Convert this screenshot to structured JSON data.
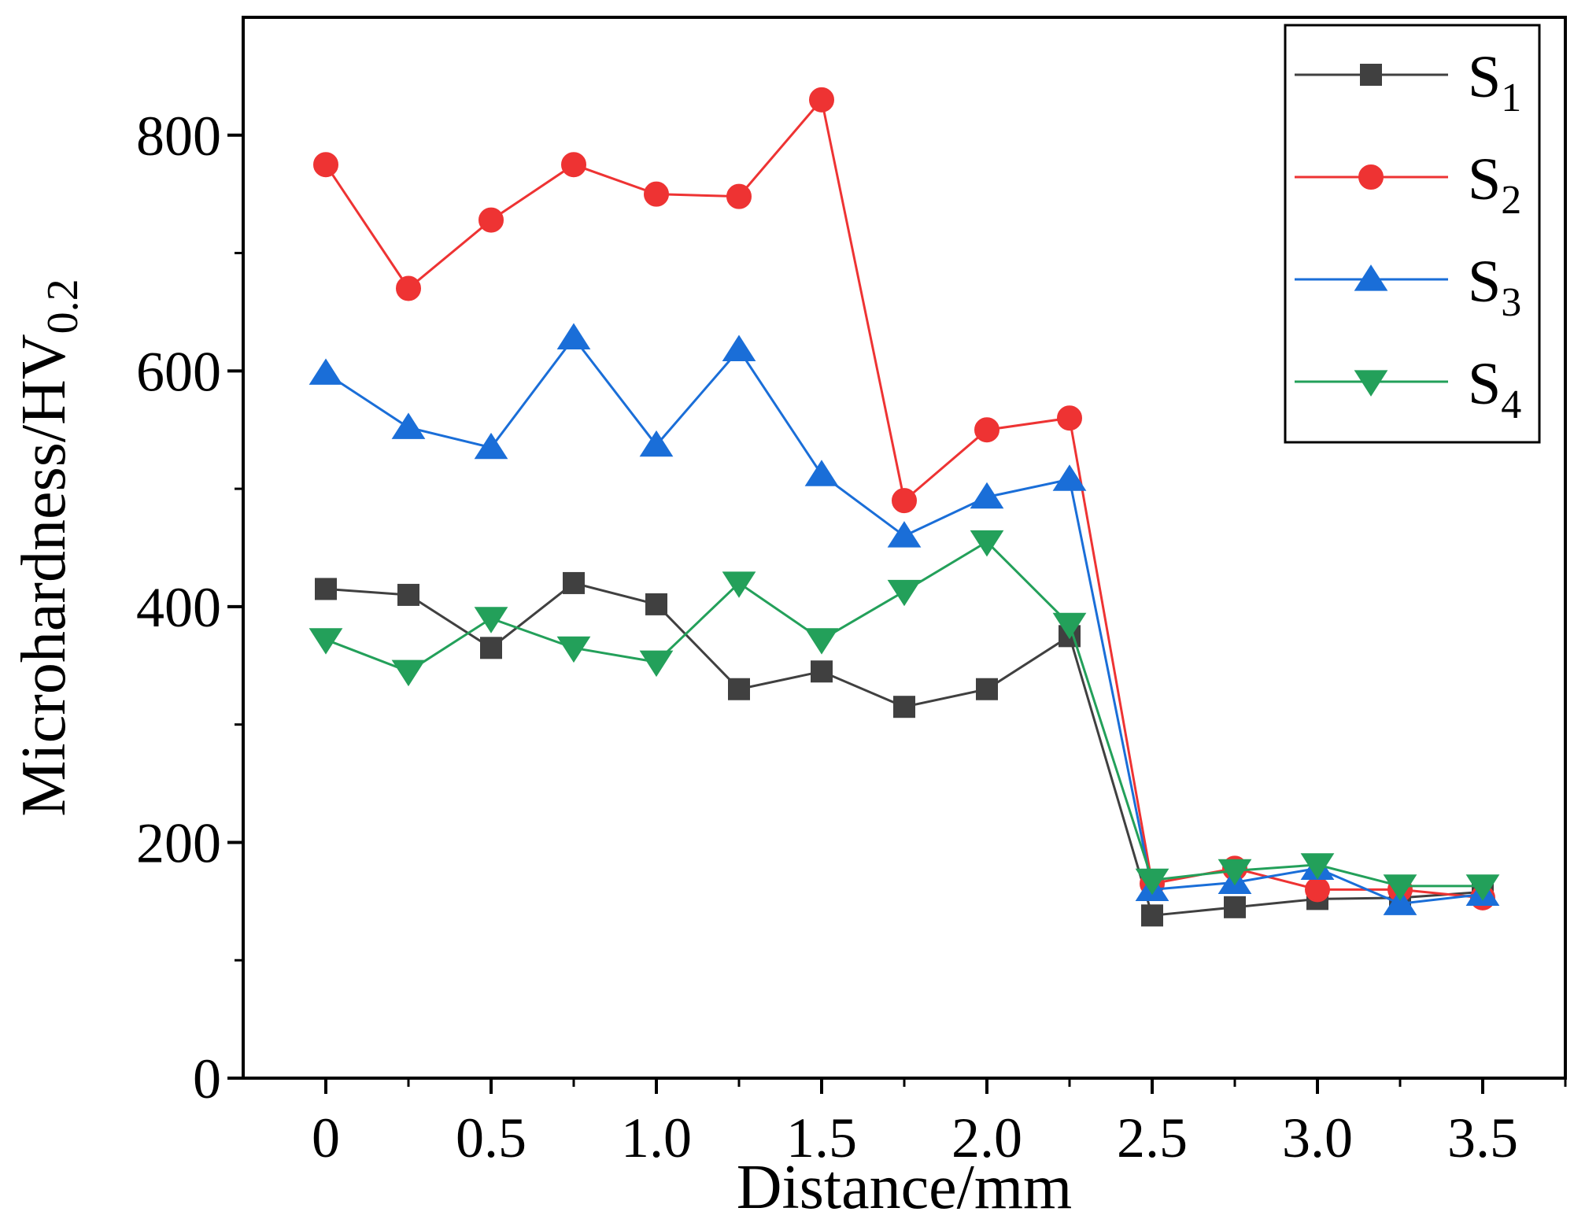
{
  "chart_data": {
    "type": "line",
    "title": "",
    "xlabel": "Distance/mm",
    "ylabel": {
      "main": "Microhardness/HV",
      "sub": "0.2"
    },
    "xlim": [
      -0.25,
      3.75
    ],
    "ylim": [
      0,
      900
    ],
    "x_ticks": [
      0,
      0.5,
      1.0,
      1.5,
      2.0,
      2.5,
      3.0,
      3.5
    ],
    "x_tick_labels": [
      "0",
      "0.5",
      "1.0",
      "1.5",
      "2.0",
      "2.5",
      "3.0",
      "3.5"
    ],
    "y_ticks": [
      0,
      200,
      400,
      600,
      800
    ],
    "y_tick_labels": [
      "0",
      "200",
      "400",
      "600",
      "800"
    ],
    "grid": false,
    "legend_position": "top-right",
    "x": [
      0,
      0.25,
      0.5,
      0.75,
      1.0,
      1.25,
      1.5,
      1.75,
      2.0,
      2.25,
      2.5,
      2.75,
      3.0,
      3.25,
      3.5
    ],
    "series": [
      {
        "name": "S",
        "sub": "1",
        "color": "#404040",
        "marker": "square",
        "values": [
          415,
          410,
          365,
          420,
          402,
          330,
          345,
          315,
          330,
          375,
          138,
          145,
          152,
          153,
          158
        ]
      },
      {
        "name": "S",
        "sub": "2",
        "color": "#ee3333",
        "marker": "circle",
        "values": [
          775,
          670,
          728,
          775,
          750,
          748,
          830,
          490,
          550,
          560,
          165,
          178,
          160,
          160,
          153
        ]
      },
      {
        "name": "S",
        "sub": "3",
        "color": "#1a6ed8",
        "marker": "triangle-up",
        "values": [
          598,
          552,
          535,
          628,
          537,
          618,
          512,
          460,
          493,
          508,
          160,
          166,
          178,
          148,
          156
        ]
      },
      {
        "name": "S",
        "sub": "4",
        "color": "#23a05a",
        "marker": "triangle-down",
        "values": [
          372,
          345,
          390,
          365,
          353,
          420,
          372,
          413,
          455,
          385,
          168,
          176,
          181,
          163,
          163
        ]
      }
    ]
  }
}
